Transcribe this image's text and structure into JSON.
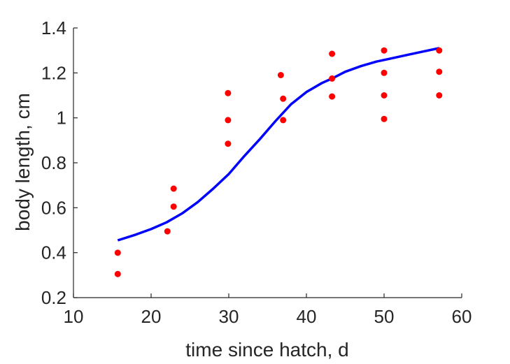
{
  "chart_data": {
    "type": "scatter",
    "xlabel": "time since hatch, d",
    "ylabel": "body length, cm",
    "xlim": [
      10,
      60
    ],
    "ylim": [
      0.2,
      1.4
    ],
    "xticks": [
      "10",
      "20",
      "30",
      "40",
      "50",
      "60"
    ],
    "yticks": [
      "0.2",
      "0.4",
      "0.6",
      "0.8",
      "1",
      "1.2",
      "1.4"
    ],
    "grid": false,
    "series": [
      {
        "kind": "scatter",
        "color": "#ff0000",
        "points": [
          [
            15.7,
            0.4
          ],
          [
            15.7,
            0.305
          ],
          [
            22.1,
            0.495
          ],
          [
            22.9,
            0.685
          ],
          [
            22.9,
            0.605
          ],
          [
            29.9,
            1.11
          ],
          [
            29.9,
            0.99
          ],
          [
            29.9,
            0.885
          ],
          [
            36.7,
            1.19
          ],
          [
            37.0,
            1.085
          ],
          [
            37.0,
            0.99
          ],
          [
            43.3,
            1.285
          ],
          [
            43.3,
            1.175
          ],
          [
            43.3,
            1.095
          ],
          [
            50.0,
            1.3
          ],
          [
            50.0,
            1.2
          ],
          [
            50.0,
            1.1
          ],
          [
            50.0,
            0.995
          ],
          [
            57.1,
            1.3
          ],
          [
            57.1,
            1.205
          ],
          [
            57.1,
            1.1
          ]
        ]
      },
      {
        "kind": "line",
        "color": "#0000ff",
        "points": [
          [
            15.7,
            0.455
          ],
          [
            18,
            0.48
          ],
          [
            20,
            0.505
          ],
          [
            22,
            0.535
          ],
          [
            24,
            0.575
          ],
          [
            26,
            0.625
          ],
          [
            28,
            0.685
          ],
          [
            30,
            0.75
          ],
          [
            32,
            0.83
          ],
          [
            34,
            0.905
          ],
          [
            36,
            0.985
          ],
          [
            38,
            1.06
          ],
          [
            40,
            1.115
          ],
          [
            42,
            1.155
          ],
          [
            43.3,
            1.175
          ],
          [
            45,
            1.205
          ],
          [
            47,
            1.23
          ],
          [
            49,
            1.25
          ],
          [
            51,
            1.265
          ],
          [
            53,
            1.28
          ],
          [
            55,
            1.295
          ],
          [
            57.1,
            1.31
          ]
        ]
      }
    ]
  }
}
